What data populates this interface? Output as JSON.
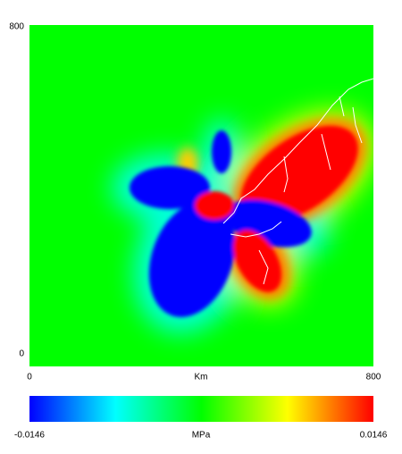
{
  "chart_data": {
    "type": "heatmap",
    "xlabel": "Km",
    "xlim": [
      0,
      800
    ],
    "xticks": [
      0,
      800
    ],
    "ylim": [
      0,
      800
    ],
    "yticks": [
      0,
      800
    ],
    "colorbar": {
      "label": "MPa",
      "clim": [
        -0.0146,
        0.0146
      ],
      "ticks": [
        -0.0146,
        0.0146
      ],
      "colormap": [
        "#0000ff",
        "#00ffff",
        "#00ff00",
        "#ffff00",
        "#ff0000"
      ]
    }
  }
}
